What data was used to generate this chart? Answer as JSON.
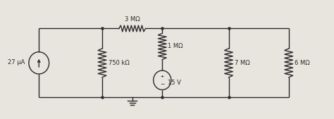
{
  "bg_color": "#e8e4de",
  "wire_color": "#2a2a2a",
  "lw": 1.0,
  "labels": {
    "27uA": "27 μA",
    "750k": "750 kΩ",
    "3M": "3 MΩ",
    "1M": "1 MΩ",
    "15V": "15 V",
    "7M": "7 MΩ",
    "6M": "6 MΩ"
  },
  "x_cs": 1.2,
  "x_750": 3.2,
  "x_1M": 5.1,
  "x_7M": 7.2,
  "x_6M": 9.1,
  "y_top": 2.6,
  "y_bot": 0.6,
  "xlim": [
    0,
    10.5
  ],
  "ylim": [
    0.0,
    3.4
  ]
}
